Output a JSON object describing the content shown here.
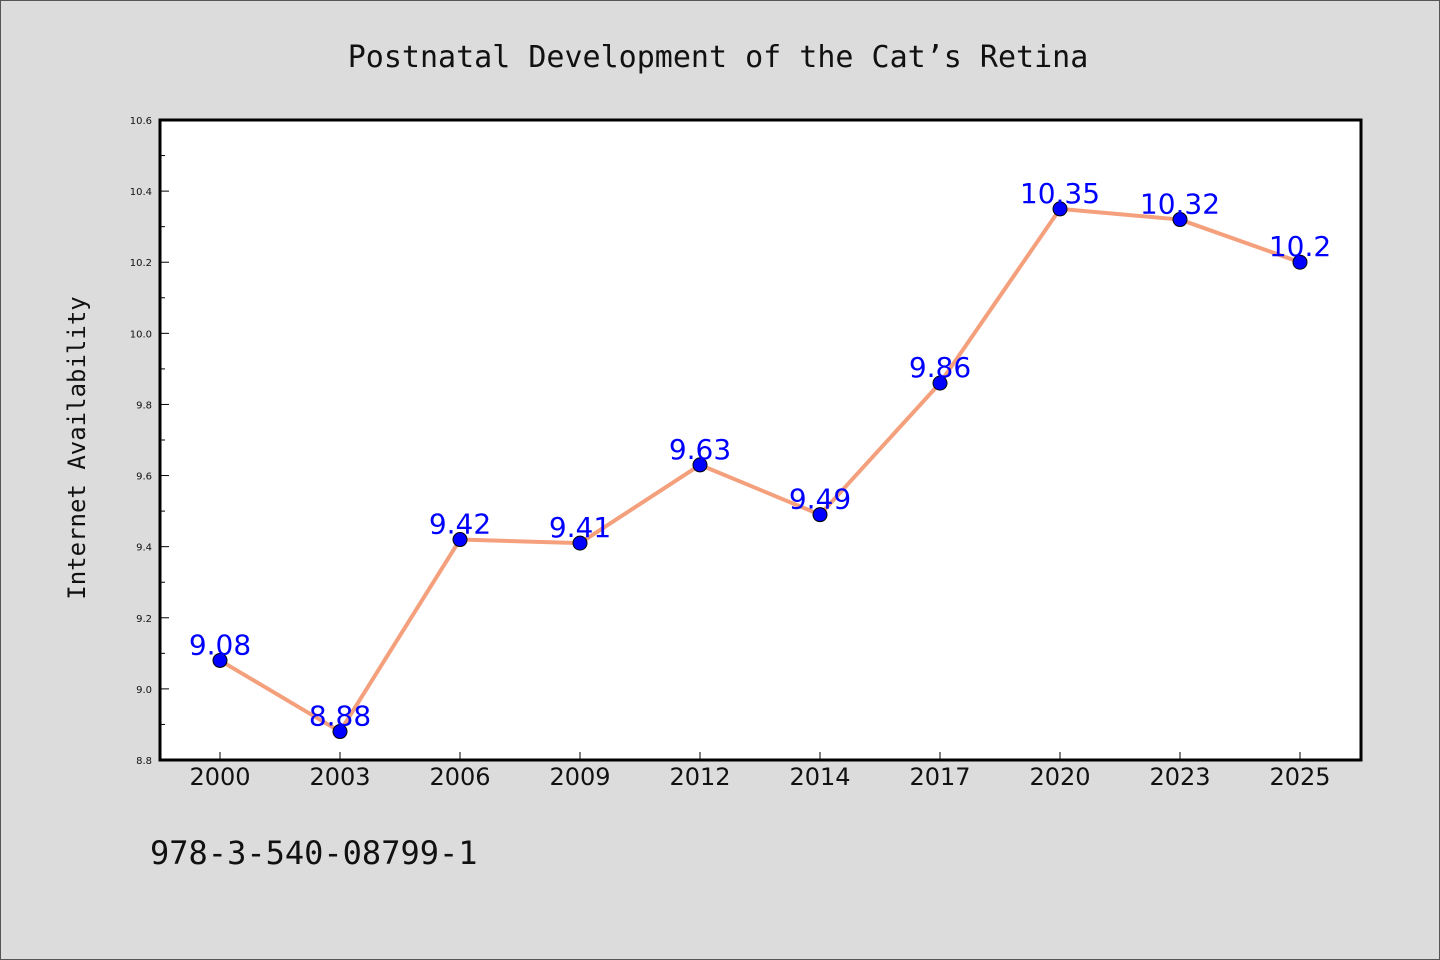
{
  "chart_data": {
    "type": "line",
    "title": "Postnatal Development of the Cat’s Retina",
    "xlabel": "",
    "ylabel": "Internet Availability",
    "categories": [
      "2000",
      "2003",
      "2006",
      "2009",
      "2012",
      "2014",
      "2017",
      "2020",
      "2023",
      "2025"
    ],
    "series": [
      {
        "values": [
          9.08,
          8.88,
          9.42,
          9.41,
          9.63,
          9.49,
          9.86,
          10.35,
          10.32,
          10.2
        ],
        "data_labels": [
          "9.08",
          "8.88",
          "9.42",
          "9.41",
          "9.63",
          "9.49",
          "9.86",
          "10.35",
          "10.32",
          "10.2"
        ],
        "line_color": "#f4a07c",
        "marker_color": "#0000ff"
      }
    ],
    "ylim": [
      8.8,
      10.6
    ],
    "yticks": [
      "8.8",
      "9.0",
      "9.2",
      "9.4",
      "9.6",
      "9.8",
      "10.0",
      "10.2",
      "10.4",
      "10.6"
    ],
    "grid": false,
    "legend": "none",
    "plot_background": "#ffffff",
    "figure_background": "#dcdcdc"
  },
  "footer_text": "978-3-540-08799-1"
}
